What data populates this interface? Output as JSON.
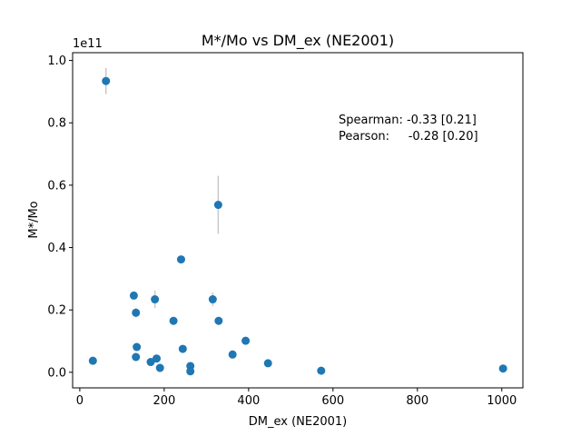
{
  "chart_data": {
    "type": "scatter",
    "title": "M*/Mo vs DM_ex (NE2001)",
    "xlabel": "DM_ex (NE2001)",
    "ylabel": "M*/Mo",
    "offset_text": "1e11",
    "xlim": [
      -17,
      1050
    ],
    "ylim": [
      -0.05,
      1.025
    ],
    "y_scale_factor": 100000000000.0,
    "xticks": [
      0,
      200,
      400,
      600,
      800,
      1000
    ],
    "xtick_labels": [
      "0",
      "200",
      "400",
      "600",
      "800",
      "1000"
    ],
    "yticks": [
      0.0,
      0.2,
      0.4,
      0.6,
      0.8,
      1.0
    ],
    "ytick_labels": [
      "0.0",
      "0.2",
      "0.4",
      "0.6",
      "0.8",
      "1.0"
    ],
    "grid": false,
    "marker_color": "#1f77b4",
    "errorbar_color": "#c8c8c8",
    "annotations": [
      "Spearman: -0.33 [0.21]",
      "Pearson:     -0.28 [0.20]"
    ],
    "points": [
      {
        "x": 62,
        "y": 0.934,
        "yerr": 0.042
      },
      {
        "x": 328,
        "y": 0.537,
        "yerr": 0.093
      },
      {
        "x": 240,
        "y": 0.362,
        "yerr": 0.008
      },
      {
        "x": 128,
        "y": 0.246,
        "yerr": 0.006
      },
      {
        "x": 178,
        "y": 0.234,
        "yerr": 0.028
      },
      {
        "x": 315,
        "y": 0.234,
        "yerr": 0.022
      },
      {
        "x": 133,
        "y": 0.191,
        "yerr": 0.015
      },
      {
        "x": 222,
        "y": 0.165,
        "yerr": 0.013
      },
      {
        "x": 329,
        "y": 0.165,
        "yerr": 0.013
      },
      {
        "x": 393,
        "y": 0.101,
        "yerr": 0.005
      },
      {
        "x": 135,
        "y": 0.081,
        "yerr": 0.005
      },
      {
        "x": 244,
        "y": 0.075,
        "yerr": 0.005
      },
      {
        "x": 362,
        "y": 0.057,
        "yerr": 0.004
      },
      {
        "x": 133,
        "y": 0.049,
        "yerr": 0.004
      },
      {
        "x": 182,
        "y": 0.044,
        "yerr": 0.004
      },
      {
        "x": 31,
        "y": 0.037,
        "yerr": 0.003
      },
      {
        "x": 168,
        "y": 0.033,
        "yerr": 0.003
      },
      {
        "x": 446,
        "y": 0.029,
        "yerr": 0.003
      },
      {
        "x": 262,
        "y": 0.02,
        "yerr": 0.003
      },
      {
        "x": 190,
        "y": 0.014,
        "yerr": 0.002
      },
      {
        "x": 1003,
        "y": 0.012,
        "yerr": 0.002
      },
      {
        "x": 572,
        "y": 0.005,
        "yerr": 0.001
      },
      {
        "x": 262,
        "y": 0.003,
        "yerr": 0.001
      }
    ]
  }
}
